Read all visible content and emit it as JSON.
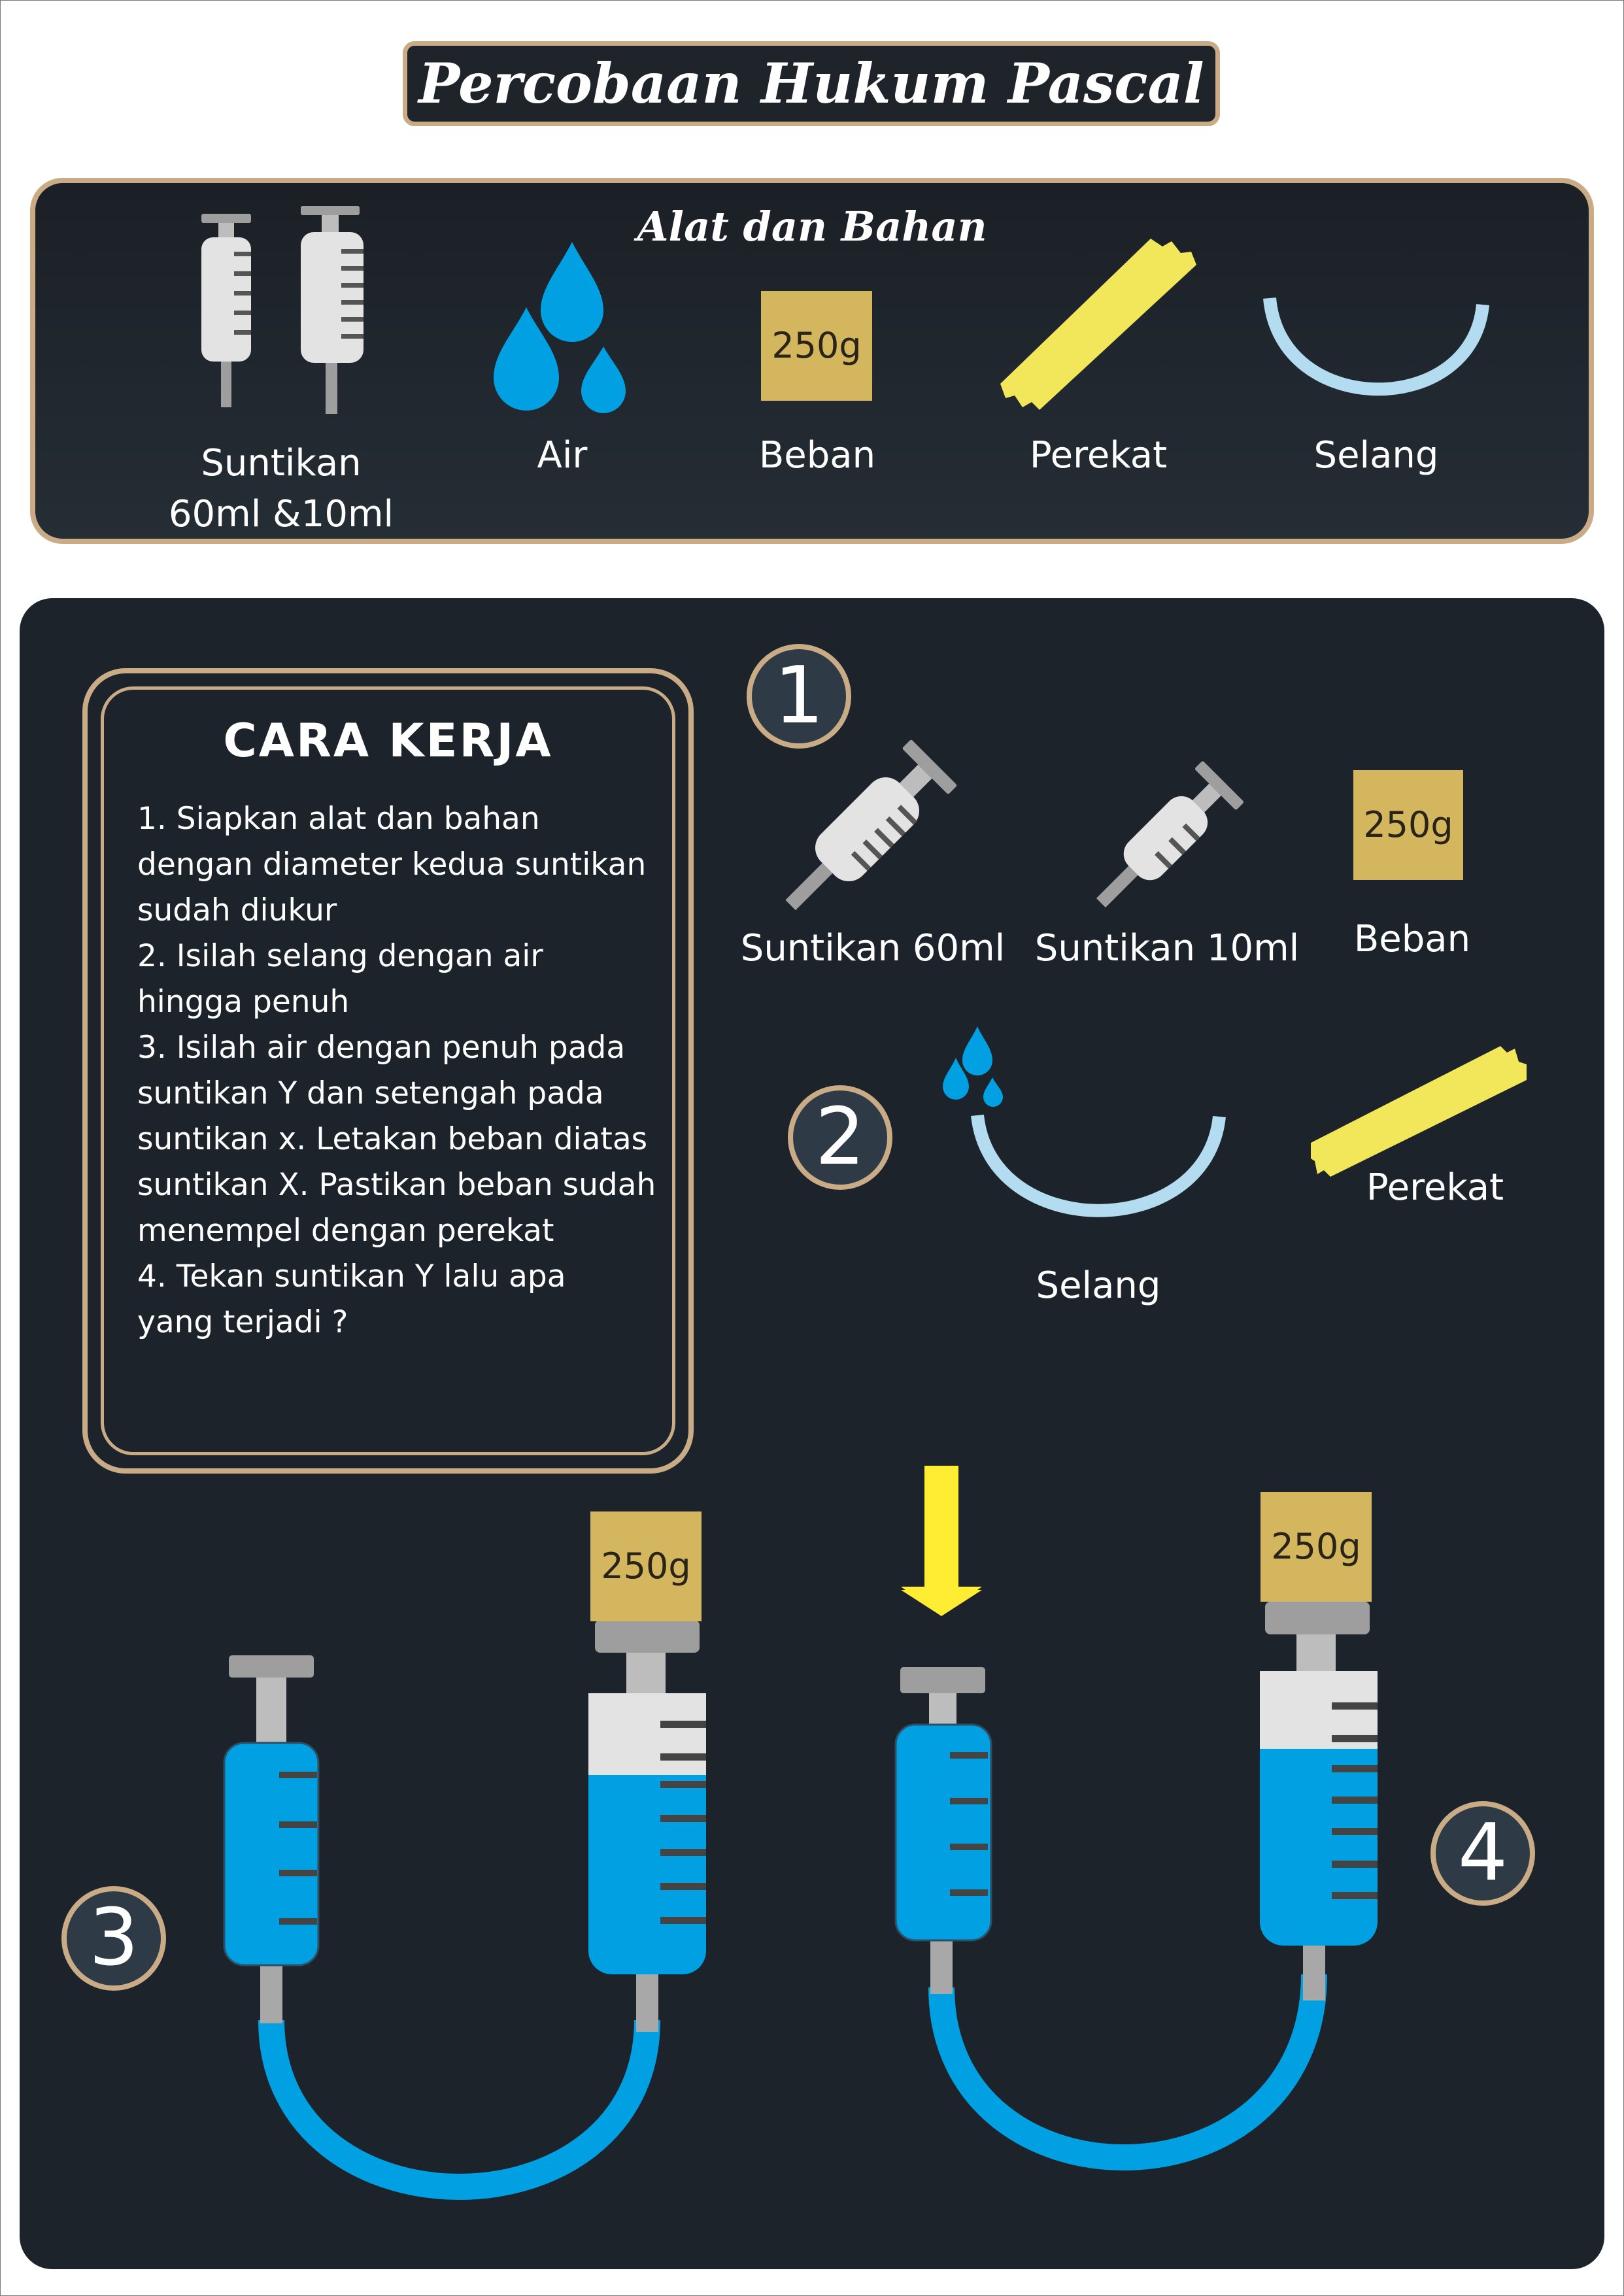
{
  "title": "Percobaan Hukum Pascal",
  "alat_dan_bahan": {
    "heading": "Alat dan Bahan",
    "items": [
      {
        "label_line1": "Suntikan",
        "label_line2": "60ml &10ml",
        "icon": "syringe-pair-icon"
      },
      {
        "label": "Air",
        "icon": "water-drops-icon"
      },
      {
        "label": "Beban",
        "icon": "weight-block-icon",
        "weight_text": "250g"
      },
      {
        "label": "Perekat",
        "icon": "tape-icon"
      },
      {
        "label": "Selang",
        "icon": "hose-icon"
      }
    ]
  },
  "cara_kerja": {
    "heading": "CARA KERJA",
    "lines": [
      "1. Siapkan alat dan bahan",
      "dengan diameter kedua suntikan",
      "sudah diukur",
      "2. Isilah selang dengan air",
      "hingga penuh",
      "3. Isilah air dengan penuh pada",
      "suntikan Y dan setengah pada",
      "suntikan x. Letakan beban diatas",
      "suntikan X. Pastikan beban sudah",
      "menempel dengan perekat",
      "4. Tekan suntikan Y lalu apa",
      "yang terjadi ?"
    ]
  },
  "steps": {
    "badges": [
      "1",
      "2",
      "3",
      "4"
    ],
    "step1": {
      "syringe_60": "Suntikan 60ml",
      "syringe_10": "Suntikan 10ml",
      "beban": "Beban",
      "weight_text": "250g"
    },
    "step2": {
      "selang": "Selang",
      "perekat": "Perekat"
    },
    "step3": {
      "weight_text": "250g"
    },
    "step4": {
      "weight_text": "250g"
    }
  },
  "colors": {
    "panel": "#1c232a",
    "border_tan": "#c9ab86",
    "water_blue": "#00a0e3",
    "hose_light": "#b3dcf1",
    "tape_yellow": "#f2e75a",
    "weight_gold": "#d3b65d",
    "syringe_body": "#e3e3e3",
    "plunger_grey": "#9e9e9e",
    "arrow_yellow": "#ffed33"
  }
}
